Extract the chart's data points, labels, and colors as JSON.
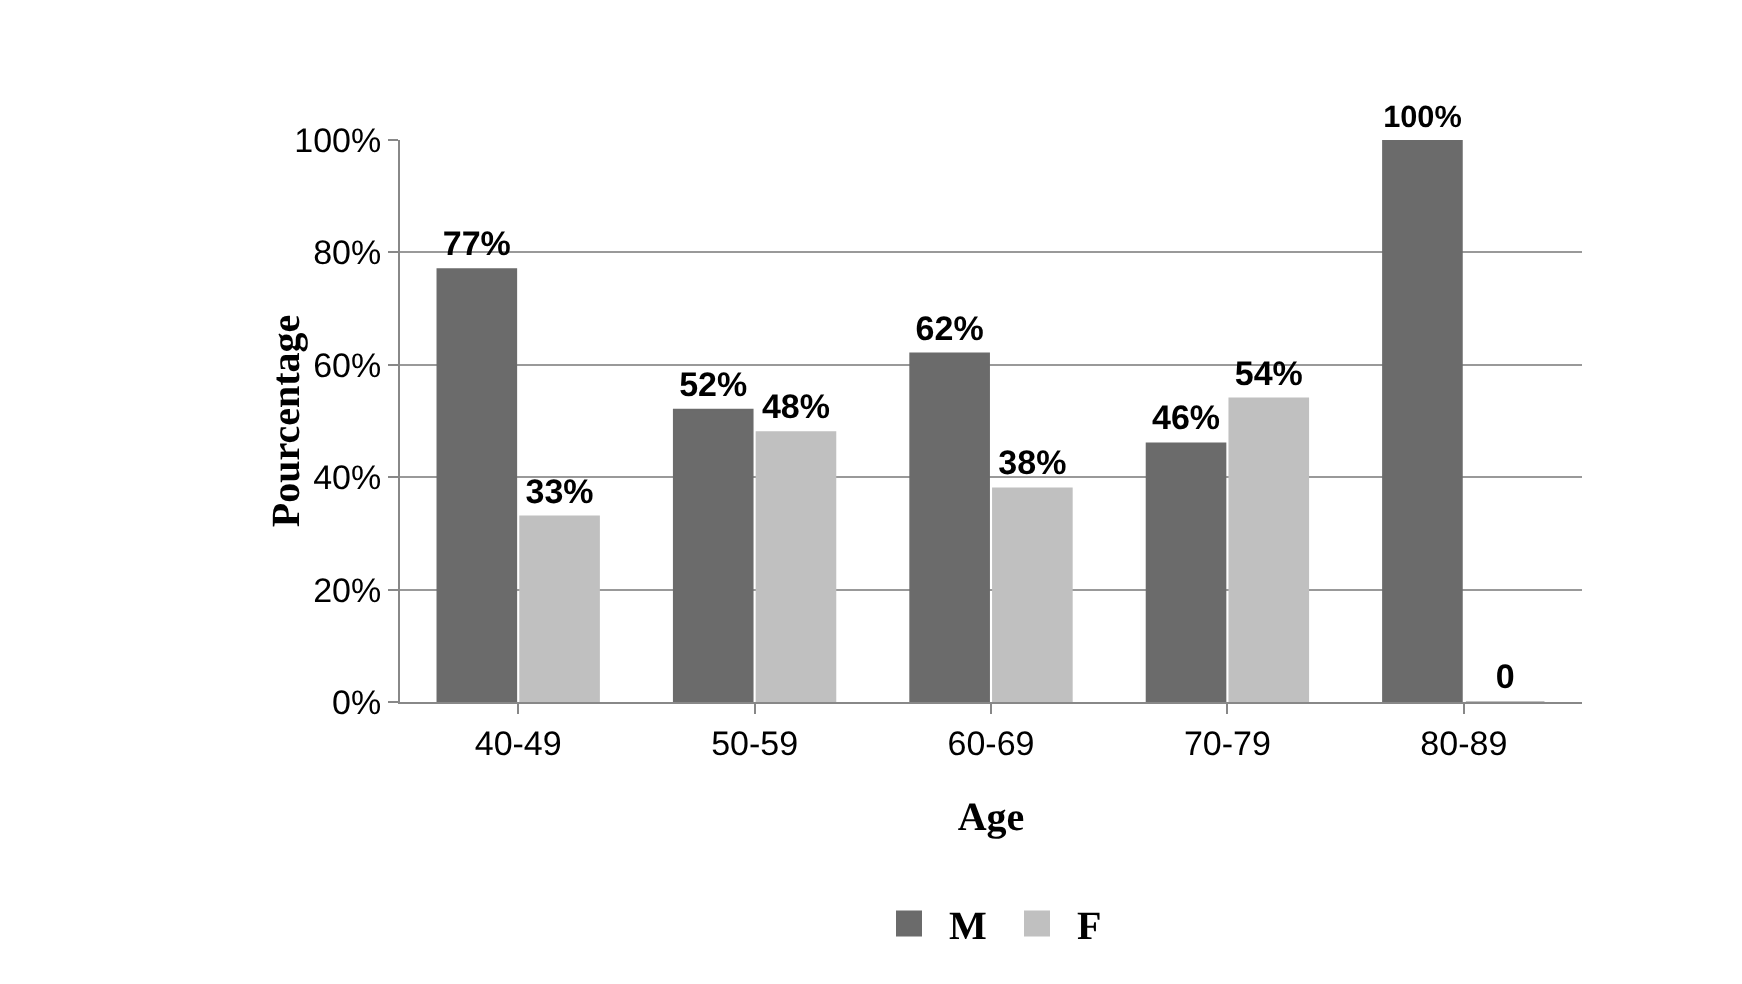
{
  "chart_data": {
    "type": "bar",
    "xlabel": "Age",
    "ylabel": "Pourcentage",
    "categories": [
      "40-49",
      "50-59",
      "60-69",
      "70-79",
      "80-89"
    ],
    "series": [
      {
        "name": "M",
        "color": "#6b6b6b",
        "values": [
          77,
          52,
          62,
          46,
          100
        ],
        "value_labels": [
          "77%",
          "52%",
          "62%",
          "46%",
          "100%"
        ]
      },
      {
        "name": "F",
        "color": "#c0c0c0",
        "values": [
          33,
          48,
          38,
          54,
          0
        ],
        "value_labels": [
          "33%",
          "48%",
          "38%",
          "54%",
          "0"
        ]
      }
    ],
    "ylim": [
      0,
      100
    ],
    "yticks": [
      {
        "value": 0,
        "label": "0%"
      },
      {
        "value": 20,
        "label": "20%"
      },
      {
        "value": 40,
        "label": "40%"
      },
      {
        "value": 60,
        "label": "60%"
      },
      {
        "value": 80,
        "label": "80%"
      },
      {
        "value": 100,
        "label": "100%"
      }
    ],
    "grid": "y",
    "legend": "bottom"
  }
}
